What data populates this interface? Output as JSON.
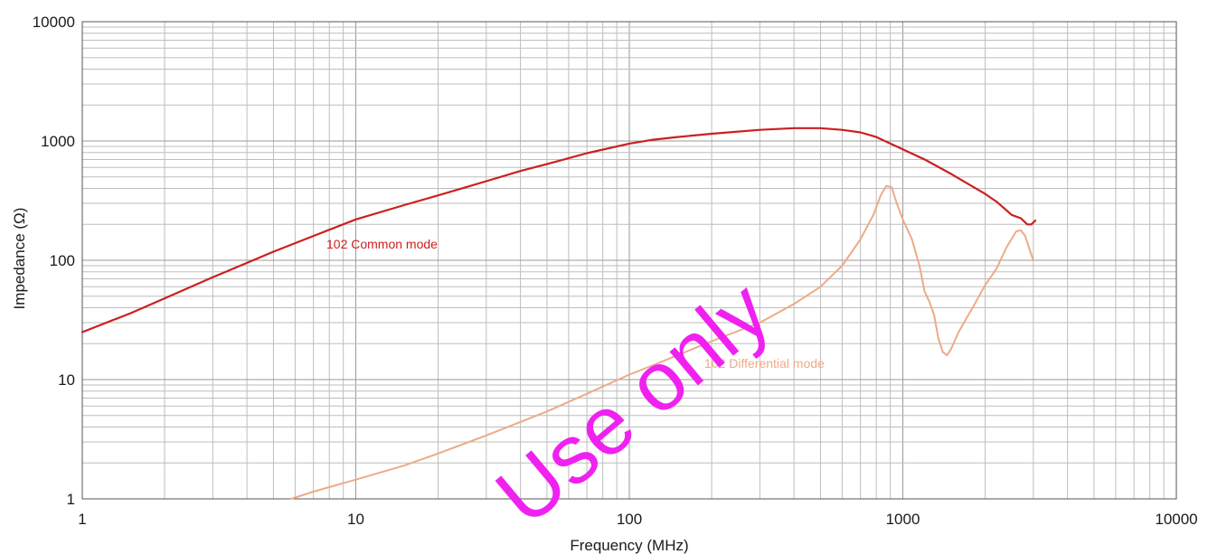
{
  "chart_data": {
    "type": "line",
    "title": "",
    "xlabel": "Frequency (MHz)",
    "ylabel": "Impedance (Ω)",
    "x_scale": "log",
    "y_scale": "log",
    "xlim": [
      1,
      10000
    ],
    "ylim": [
      1,
      10000
    ],
    "x_ticks": [
      1,
      10,
      100,
      1000,
      10000
    ],
    "x_tick_labels": [
      "1",
      "10",
      "100",
      "1000",
      "10000"
    ],
    "y_ticks": [
      1,
      10,
      100,
      1000,
      10000
    ],
    "y_tick_labels": [
      "1",
      "10",
      "100",
      "1000",
      "10000"
    ],
    "grid": true,
    "series": [
      {
        "name": "102 Common mode",
        "color": "#cc1f1f",
        "points": [
          [
            1,
            25
          ],
          [
            1.5,
            36
          ],
          [
            2,
            48
          ],
          [
            3,
            72
          ],
          [
            4,
            95
          ],
          [
            5,
            118
          ],
          [
            7,
            160
          ],
          [
            10,
            220
          ],
          [
            15,
            290
          ],
          [
            20,
            350
          ],
          [
            30,
            460
          ],
          [
            40,
            560
          ],
          [
            50,
            640
          ],
          [
            70,
            790
          ],
          [
            100,
            950
          ],
          [
            120,
            1020
          ],
          [
            150,
            1080
          ],
          [
            200,
            1150
          ],
          [
            300,
            1240
          ],
          [
            400,
            1280
          ],
          [
            500,
            1280
          ],
          [
            600,
            1240
          ],
          [
            700,
            1180
          ],
          [
            800,
            1080
          ],
          [
            900,
            950
          ],
          [
            1000,
            850
          ],
          [
            1200,
            700
          ],
          [
            1500,
            530
          ],
          [
            2000,
            360
          ],
          [
            2200,
            310
          ],
          [
            2500,
            240
          ],
          [
            2700,
            225
          ],
          [
            2850,
            200
          ],
          [
            2950,
            200
          ],
          [
            3050,
            215
          ]
        ]
      },
      {
        "name": "102 Differential mode",
        "color": "#eeaa88",
        "points": [
          [
            5.8,
            1
          ],
          [
            7,
            1.15
          ],
          [
            10,
            1.45
          ],
          [
            15,
            1.9
          ],
          [
            20,
            2.4
          ],
          [
            30,
            3.4
          ],
          [
            50,
            5.4
          ],
          [
            70,
            7.6
          ],
          [
            100,
            11
          ],
          [
            120,
            13
          ],
          [
            150,
            16
          ],
          [
            200,
            21
          ],
          [
            300,
            30
          ],
          [
            400,
            43
          ],
          [
            500,
            60
          ],
          [
            600,
            90
          ],
          [
            700,
            150
          ],
          [
            780,
            240
          ],
          [
            830,
            350
          ],
          [
            870,
            420
          ],
          [
            910,
            410
          ],
          [
            950,
            300
          ],
          [
            1000,
            220
          ],
          [
            1080,
            150
          ],
          [
            1150,
            90
          ],
          [
            1200,
            55
          ],
          [
            1250,
            45
          ],
          [
            1300,
            35
          ],
          [
            1350,
            22
          ],
          [
            1400,
            17
          ],
          [
            1450,
            16
          ],
          [
            1500,
            18
          ],
          [
            1600,
            25
          ],
          [
            1700,
            32
          ],
          [
            1800,
            40
          ],
          [
            1900,
            50
          ],
          [
            2000,
            62
          ],
          [
            2200,
            85
          ],
          [
            2400,
            130
          ],
          [
            2600,
            175
          ],
          [
            2700,
            178
          ],
          [
            2800,
            160
          ],
          [
            2900,
            125
          ],
          [
            3000,
            100
          ]
        ]
      }
    ]
  },
  "labels": {
    "common_mode": "102 Common mode",
    "differential_mode": "102 Differential mode"
  },
  "watermark": {
    "text": "Use only",
    "color": "#f021f0"
  }
}
